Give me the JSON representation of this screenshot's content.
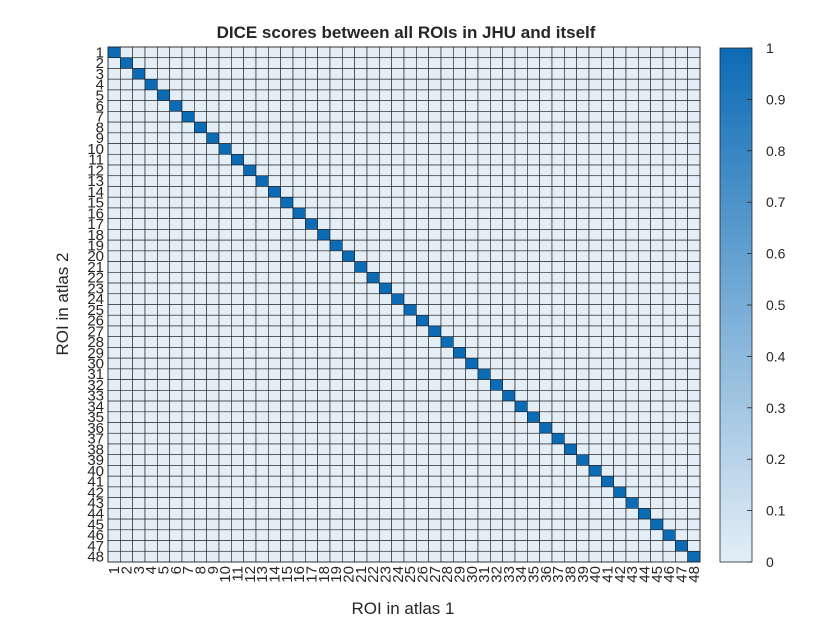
{
  "chart_data": {
    "type": "heatmap",
    "title": "DICE scores between all ROIs in JHU and itself",
    "xlabel": "ROI in atlas 1",
    "ylabel": "ROI in atlas 2",
    "size": 48,
    "x_categories": [
      "1",
      "2",
      "3",
      "4",
      "5",
      "6",
      "7",
      "8",
      "9",
      "10",
      "11",
      "12",
      "13",
      "14",
      "15",
      "16",
      "17",
      "18",
      "19",
      "20",
      "21",
      "22",
      "23",
      "24",
      "25",
      "26",
      "27",
      "28",
      "29",
      "30",
      "31",
      "32",
      "33",
      "34",
      "35",
      "36",
      "37",
      "38",
      "39",
      "40",
      "41",
      "42",
      "43",
      "44",
      "45",
      "46",
      "47",
      "48"
    ],
    "y_categories": [
      "1",
      "2",
      "3",
      "4",
      "5",
      "6",
      "7",
      "8",
      "9",
      "10",
      "11",
      "12",
      "13",
      "14",
      "15",
      "16",
      "17",
      "18",
      "19",
      "20",
      "21",
      "22",
      "23",
      "24",
      "25",
      "26",
      "27",
      "28",
      "29",
      "30",
      "31",
      "32",
      "33",
      "34",
      "35",
      "36",
      "37",
      "38",
      "39",
      "40",
      "41",
      "42",
      "43",
      "44",
      "45",
      "46",
      "47",
      "48"
    ],
    "diagonal_value": 1,
    "off_diagonal_value": 0,
    "color_range": [
      0,
      1
    ],
    "colormap": {
      "low": "#e3eef7",
      "high": "#0c6bb5"
    },
    "colorbar": {
      "position": "right",
      "ticks": [
        "0",
        "0.1",
        "0.2",
        "0.3",
        "0.4",
        "0.5",
        "0.6",
        "0.7",
        "0.8",
        "0.9",
        "1"
      ]
    },
    "grid": true
  }
}
